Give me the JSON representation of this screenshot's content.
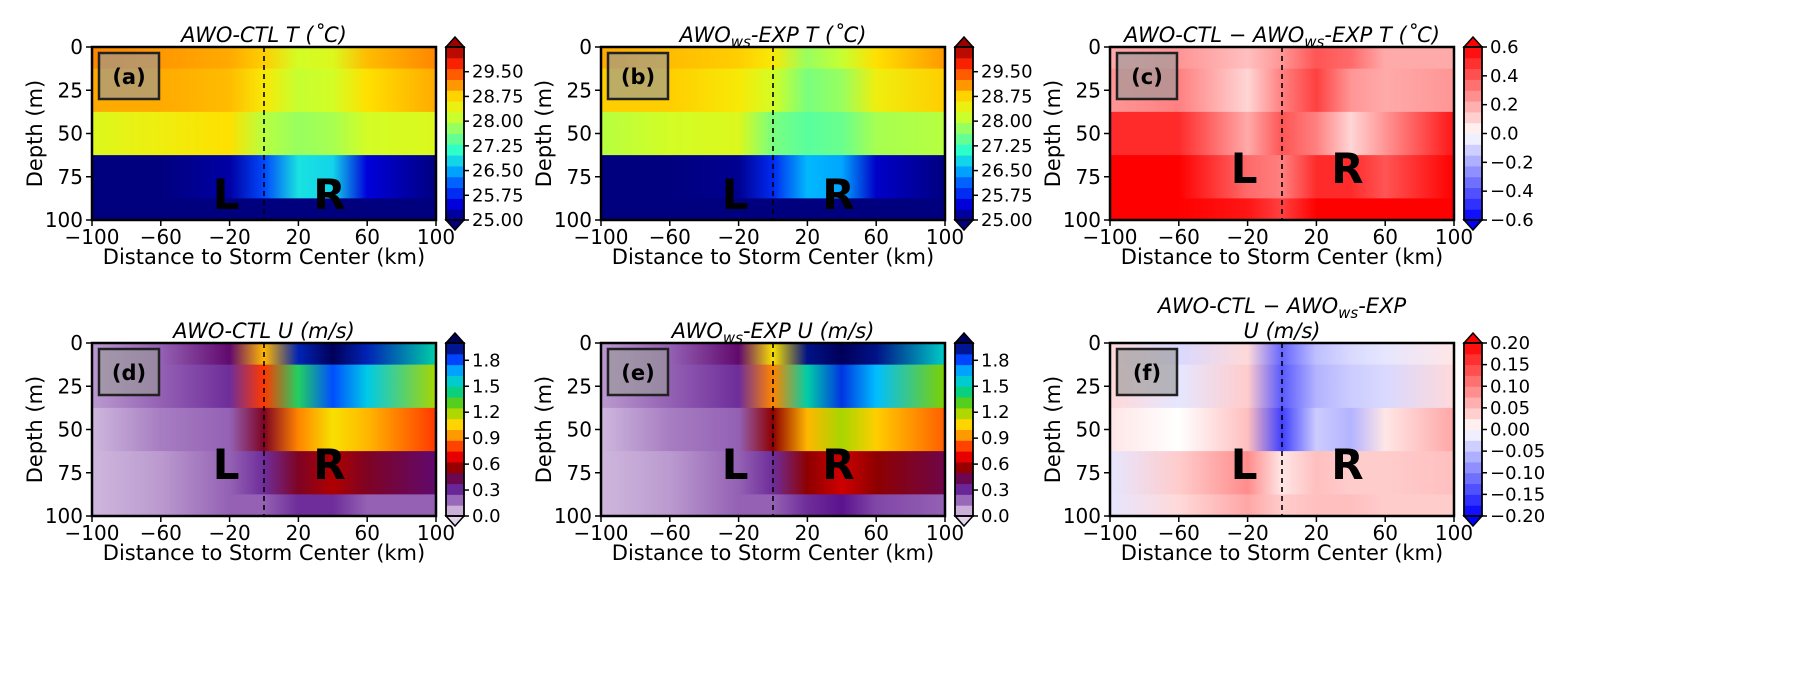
{
  "chart_data": [
    {
      "id": "a",
      "type": "contour",
      "panel_label": "(a)",
      "title": "AWO-CTL  T (˚C)",
      "xlabel": "Distance to Storm Center (km)",
      "ylabel": "Depth (m)",
      "xlim": [
        -100,
        100
      ],
      "ylim": [
        100,
        0
      ],
      "xticks": [
        "−100",
        "−60",
        "−20",
        "20",
        "60",
        "100"
      ],
      "yticks": [
        "0",
        "25",
        "50",
        "75",
        "100"
      ],
      "colormap": "jet",
      "colorbar_range": [
        25.0,
        30.25
      ],
      "colorbar_ticks": [
        "29.50",
        "28.75",
        "28.00",
        "27.25",
        "26.50",
        "25.75",
        "25.00"
      ],
      "storm_center_line": 0,
      "region_labels": [
        {
          "text": "L",
          "x": -22,
          "y": 85
        },
        {
          "text": "R",
          "x": 38,
          "y": 85
        }
      ],
      "sections": {
        "x": [
          -100,
          -60,
          -20,
          0,
          20,
          40,
          60,
          100
        ],
        "depths": [
          0,
          25,
          50,
          75,
          100
        ],
        "values": [
          [
            29.2,
            29.1,
            29.0,
            28.8,
            28.2,
            28.3,
            28.9,
            29.2
          ],
          [
            29.0,
            29.0,
            28.9,
            28.6,
            28.1,
            28.2,
            28.7,
            29.0
          ],
          [
            28.3,
            28.5,
            28.7,
            28.0,
            27.8,
            27.9,
            28.2,
            28.3
          ],
          [
            25.0,
            25.0,
            25.2,
            26.0,
            26.9,
            26.8,
            25.5,
            25.0
          ],
          [
            25.0,
            25.0,
            25.0,
            25.0,
            25.0,
            25.0,
            25.0,
            25.0
          ]
        ]
      }
    },
    {
      "id": "b",
      "type": "contour",
      "panel_label": "(b)",
      "title": "AWOws-EXP T (˚C)",
      "title_parts": {
        "pre": "AWO",
        "sub": "ws",
        "post": "-EXP T (˚C)"
      },
      "xlabel": "Distance to Storm Center (km)",
      "ylabel": "Depth (m)",
      "xlim": [
        -100,
        100
      ],
      "ylim": [
        100,
        0
      ],
      "xticks": [
        "−100",
        "−60",
        "−20",
        "20",
        "60",
        "100"
      ],
      "yticks": [
        "0",
        "25",
        "50",
        "75",
        "100"
      ],
      "colormap": "jet",
      "colorbar_range": [
        25.0,
        30.25
      ],
      "colorbar_ticks": [
        "29.50",
        "28.75",
        "28.00",
        "27.25",
        "26.50",
        "25.75",
        "25.00"
      ],
      "storm_center_line": 0,
      "region_labels": [
        {
          "text": "L",
          "x": -22,
          "y": 85
        },
        {
          "text": "R",
          "x": 38,
          "y": 85
        }
      ],
      "sections": {
        "x": [
          -100,
          -60,
          -20,
          0,
          20,
          40,
          60,
          100
        ],
        "depths": [
          0,
          25,
          50,
          75,
          100
        ],
        "values": [
          [
            29.0,
            28.9,
            28.8,
            28.6,
            27.8,
            28.1,
            28.7,
            29.1
          ],
          [
            28.8,
            28.8,
            28.6,
            28.2,
            27.6,
            27.8,
            28.5,
            28.8
          ],
          [
            28.0,
            28.2,
            28.3,
            27.6,
            27.4,
            27.5,
            27.9,
            28.0
          ],
          [
            25.0,
            25.0,
            25.1,
            25.8,
            26.6,
            26.5,
            25.4,
            25.0
          ],
          [
            25.0,
            25.0,
            25.0,
            25.0,
            25.0,
            25.0,
            25.0,
            25.0
          ]
        ]
      }
    },
    {
      "id": "c",
      "type": "contour",
      "panel_label": "(c)",
      "title": "AWO-CTL − AWOws-EXP T (˚C)",
      "title_parts": {
        "pre": "AWO-CTL − AWO",
        "sub": "ws",
        "post": "-EXP T (˚C)"
      },
      "xlabel": "Distance to Storm Center (km)",
      "ylabel": "Depth (m)",
      "xlim": [
        -100,
        100
      ],
      "ylim": [
        100,
        0
      ],
      "xticks": [
        "−100",
        "−60",
        "−20",
        "20",
        "60",
        "100"
      ],
      "yticks": [
        "0",
        "25",
        "50",
        "75",
        "100"
      ],
      "colormap": "bwr",
      "colorbar_range": [
        -0.6,
        0.6
      ],
      "colorbar_ticks": [
        "0.6",
        "0.4",
        "0.2",
        "0.0",
        "−0.2",
        "−0.4",
        "−0.6"
      ],
      "storm_center_line": 0,
      "region_labels": [
        {
          "text": "L",
          "x": -22,
          "y": 70
        },
        {
          "text": "R",
          "x": 38,
          "y": 70
        }
      ],
      "sections": {
        "x": [
          -100,
          -60,
          -20,
          0,
          20,
          40,
          60,
          100
        ],
        "depths": [
          0,
          25,
          50,
          75,
          100
        ],
        "values": [
          [
            0.2,
            0.25,
            0.15,
            0.25,
            0.4,
            0.35,
            0.2,
            0.2
          ],
          [
            0.25,
            0.3,
            0.1,
            0.3,
            0.45,
            0.25,
            0.2,
            0.25
          ],
          [
            0.5,
            0.5,
            0.2,
            0.4,
            0.3,
            0.1,
            0.25,
            0.55
          ],
          [
            0.6,
            0.6,
            0.35,
            0.3,
            0.5,
            0.5,
            0.4,
            0.6
          ],
          [
            0.6,
            0.6,
            0.55,
            0.45,
            0.6,
            0.6,
            0.6,
            0.6
          ]
        ]
      }
    },
    {
      "id": "d",
      "type": "contour",
      "panel_label": "(d)",
      "title": "AWO-CTL U (m/s)",
      "xlabel": "Distance to Storm Center (km)",
      "ylabel": "Depth (m)",
      "xlim": [
        -100,
        100
      ],
      "ylim": [
        100,
        0
      ],
      "xticks": [
        "−100",
        "−60",
        "−20",
        "20",
        "60",
        "100"
      ],
      "yticks": [
        "0",
        "25",
        "50",
        "75",
        "100"
      ],
      "colormap": "rainbow-violet",
      "colorbar_range": [
        0.0,
        2.0
      ],
      "colorbar_ticks": [
        "1.8",
        "1.5",
        "1.2",
        "0.9",
        "0.6",
        "0.3",
        "0.0"
      ],
      "storm_center_line": 0,
      "region_labels": [
        {
          "text": "L",
          "x": -22,
          "y": 70
        },
        {
          "text": "R",
          "x": 38,
          "y": 70
        }
      ],
      "sections": {
        "x": [
          -100,
          -60,
          -20,
          0,
          20,
          40,
          60,
          100
        ],
        "depths": [
          0,
          25,
          50,
          75,
          100
        ],
        "values": [
          [
            0.1,
            0.2,
            0.4,
            1.0,
            1.9,
            2.0,
            1.9,
            1.5
          ],
          [
            0.1,
            0.2,
            0.3,
            0.8,
            1.4,
            1.8,
            1.6,
            1.2
          ],
          [
            0.05,
            0.15,
            0.2,
            0.5,
            0.9,
            1.1,
            1.0,
            0.8
          ],
          [
            0.05,
            0.1,
            0.2,
            0.3,
            0.5,
            0.6,
            0.5,
            0.4
          ],
          [
            0.05,
            0.1,
            0.2,
            0.2,
            0.3,
            0.3,
            0.2,
            0.2
          ]
        ]
      }
    },
    {
      "id": "e",
      "type": "contour",
      "panel_label": "(e)",
      "title": "AWOws-EXP U (m/s)",
      "title_parts": {
        "pre": "AWO",
        "sub": "ws",
        "post": "-EXP U (m/s)"
      },
      "xlabel": "Distance to Storm Center (km)",
      "ylabel": "Depth (m)",
      "xlim": [
        -100,
        100
      ],
      "ylim": [
        100,
        0
      ],
      "xticks": [
        "−100",
        "−60",
        "−20",
        "20",
        "60",
        "100"
      ],
      "yticks": [
        "0",
        "25",
        "50",
        "75",
        "100"
      ],
      "colormap": "rainbow-violet",
      "colorbar_range": [
        0.0,
        2.0
      ],
      "colorbar_ticks": [
        "1.8",
        "1.5",
        "1.2",
        "0.9",
        "0.6",
        "0.3",
        "0.0"
      ],
      "storm_center_line": 0,
      "region_labels": [
        {
          "text": "L",
          "x": -22,
          "y": 70
        },
        {
          "text": "R",
          "x": 38,
          "y": 70
        }
      ],
      "sections": {
        "x": [
          -100,
          -60,
          -20,
          0,
          20,
          40,
          60,
          100
        ],
        "depths": [
          0,
          25,
          50,
          75,
          100
        ],
        "values": [
          [
            0.1,
            0.2,
            0.4,
            1.1,
            1.95,
            2.0,
            1.95,
            1.55
          ],
          [
            0.1,
            0.2,
            0.3,
            0.9,
            1.5,
            1.85,
            1.65,
            1.25
          ],
          [
            0.05,
            0.15,
            0.2,
            0.55,
            1.0,
            1.2,
            1.05,
            0.85
          ],
          [
            0.05,
            0.1,
            0.2,
            0.3,
            0.55,
            0.65,
            0.55,
            0.45
          ],
          [
            0.05,
            0.1,
            0.2,
            0.2,
            0.3,
            0.35,
            0.25,
            0.2
          ]
        ]
      }
    },
    {
      "id": "f",
      "type": "contour",
      "panel_label": "(f)",
      "title": "AWO-CTL − AWOws-EXP U (m/s)",
      "title_parts": {
        "pre": "AWO-CTL − AWO",
        "sub": "ws",
        "post": "-EXP",
        "line2": "U (m/s)"
      },
      "xlabel": "Distance to Storm Center (km)",
      "ylabel": "Depth (m)",
      "xlim": [
        -100,
        100
      ],
      "ylim": [
        100,
        0
      ],
      "xticks": [
        "−100",
        "−60",
        "−20",
        "20",
        "60",
        "100"
      ],
      "yticks": [
        "0",
        "25",
        "50",
        "75",
        "100"
      ],
      "colormap": "bwr",
      "colorbar_range": [
        -0.2,
        0.2
      ],
      "colorbar_ticks": [
        "0.20",
        "0.15",
        "0.10",
        "0.05",
        "0.00",
        "−0.05",
        "−0.10",
        "−0.15",
        "−0.20"
      ],
      "storm_center_line": 0,
      "region_labels": [
        {
          "text": "L",
          "x": -22,
          "y": 70
        },
        {
          "text": "R",
          "x": 38,
          "y": 70
        }
      ],
      "sections": {
        "x": [
          -100,
          -60,
          -20,
          0,
          20,
          40,
          60,
          100
        ],
        "depths": [
          0,
          25,
          50,
          75,
          100
        ],
        "values": [
          [
            0.03,
            -0.03,
            0.03,
            -0.12,
            -0.05,
            -0.03,
            -0.02,
            0.02
          ],
          [
            0.03,
            -0.02,
            0.04,
            -0.13,
            -0.06,
            -0.04,
            -0.03,
            0.03
          ],
          [
            0.02,
            0.0,
            0.05,
            -0.15,
            -0.04,
            -0.06,
            0.02,
            0.07
          ],
          [
            -0.02,
            0.04,
            0.09,
            0.02,
            0.05,
            0.04,
            0.04,
            0.05
          ],
          [
            -0.02,
            0.03,
            0.07,
            0.04,
            0.05,
            0.05,
            0.04,
            0.04
          ]
        ]
      }
    }
  ]
}
